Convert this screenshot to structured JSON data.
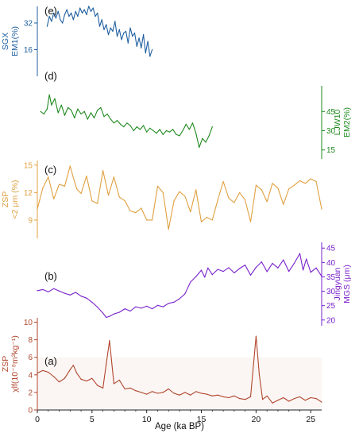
{
  "chart_data": {
    "type": "line",
    "x_axis": {
      "label": "Age (ka BP)",
      "range": [
        0,
        26
      ],
      "ticks": [
        "0",
        "5",
        "10",
        "15",
        "20",
        "25"
      ]
    },
    "panels": [
      {
        "id": "e",
        "tag": "(e)",
        "side": "left",
        "color": "#1f5fa0",
        "ylabel": [
          "SGX",
          "EM1(%)"
        ],
        "ylim": [
          0,
          42
        ],
        "y_ticks": [
          "16",
          "32"
        ],
        "y_tick_values": [
          16,
          32
        ],
        "series": {
          "name": "SGX EM1",
          "x": [
            0.9,
            1.1,
            1.3,
            1.5,
            1.7,
            1.9,
            2.1,
            2.3,
            2.5,
            2.7,
            2.9,
            3.1,
            3.3,
            3.5,
            3.7,
            3.9,
            4.1,
            4.3,
            4.5,
            4.7,
            4.9,
            5.1,
            5.3,
            5.5,
            5.7,
            5.9,
            6.1,
            6.3,
            6.5,
            6.7,
            6.9,
            7.1,
            7.3,
            7.5,
            7.7,
            7.9,
            8.1,
            8.3,
            8.5,
            8.7,
            8.9,
            9.1,
            9.3,
            9.5,
            9.7,
            9.9,
            10.1,
            10.3,
            10.5
          ],
          "y": [
            30,
            36,
            33,
            38,
            35,
            39,
            34,
            32,
            37,
            40,
            36,
            38,
            34,
            39,
            36,
            41,
            38,
            40,
            37,
            42,
            39,
            41,
            36,
            38,
            30,
            34,
            28,
            31,
            25,
            29,
            27,
            33,
            24,
            28,
            22,
            26,
            27,
            20,
            29,
            24,
            26,
            18,
            23,
            17,
            25,
            14,
            21,
            12,
            16
          ]
        }
      },
      {
        "id": "d",
        "tag": "(d)",
        "side": "right",
        "color": "#1f8a1f",
        "ylabel": [
          "LJW10",
          "EM2(%)"
        ],
        "ylim": [
          8,
          65
        ],
        "y_ticks": [
          "15",
          "30",
          "45"
        ],
        "y_tick_values": [
          15,
          30,
          45
        ],
        "series": {
          "name": "LJW10 EM2",
          "x": [
            0.3,
            0.6,
            0.9,
            1.1,
            1.3,
            1.6,
            1.9,
            2.2,
            2.5,
            2.8,
            3.1,
            3.4,
            3.7,
            4.0,
            4.3,
            4.6,
            4.9,
            5.2,
            5.5,
            5.8,
            6.1,
            6.4,
            6.7,
            7.0,
            7.3,
            7.6,
            7.9,
            8.2,
            8.5,
            8.8,
            9.1,
            9.4,
            9.7,
            10.0,
            10.3,
            10.6,
            10.9,
            11.2,
            11.5,
            11.8,
            12.1,
            12.4,
            12.7,
            13.0,
            13.3,
            13.6,
            13.9,
            14.2,
            14.5,
            14.8,
            15.1,
            15.4,
            15.7,
            16.0
          ],
          "y": [
            45,
            43,
            47,
            58,
            50,
            55,
            44,
            50,
            42,
            48,
            46,
            40,
            47,
            43,
            45,
            39,
            44,
            40,
            46,
            48,
            41,
            43,
            39,
            36,
            38,
            35,
            33,
            36,
            34,
            30,
            33,
            31,
            34,
            29,
            32,
            30,
            28,
            31,
            27,
            30,
            29,
            31,
            27,
            26,
            30,
            35,
            31,
            36,
            28,
            17,
            24,
            21,
            26,
            33
          ]
        }
      },
      {
        "id": "c",
        "tag": "(c)",
        "side": "left",
        "color": "#e0a040",
        "ylabel": [
          "ZSP",
          "<2 μm  (%)"
        ],
        "ylim": [
          7,
          15.5
        ],
        "y_ticks": [
          "9",
          "12",
          "15"
        ],
        "y_tick_values": [
          9,
          12,
          15
        ],
        "series": {
          "name": "ZSP <2 μm",
          "x": [
            0,
            0.5,
            1.0,
            1.5,
            2.0,
            2.5,
            3.0,
            3.3,
            3.6,
            4.0,
            4.5,
            5.0,
            5.5,
            6.0,
            6.5,
            7.0,
            7.5,
            8.0,
            8.5,
            9.0,
            9.5,
            10.0,
            10.5,
            11.0,
            11.5,
            12.0,
            12.5,
            13.0,
            13.5,
            14.0,
            14.5,
            15.0,
            15.5,
            16.0,
            16.5,
            17.0,
            17.5,
            18.0,
            18.5,
            19.0,
            19.5,
            20.0,
            20.5,
            21.0,
            21.5,
            22.0,
            22.5,
            23.0,
            23.5,
            24.0,
            24.5,
            25.0,
            25.5,
            26.0
          ],
          "y": [
            10.2,
            12.5,
            13.7,
            11.3,
            12.9,
            12.7,
            14.9,
            13.6,
            12.4,
            11.9,
            13.8,
            11.1,
            10.8,
            14.4,
            11.7,
            13.7,
            11.5,
            11.1,
            10.0,
            9.8,
            10.3,
            9.0,
            9.0,
            12.7,
            12.0,
            8.0,
            11.1,
            12.1,
            11.6,
            9.9,
            12.3,
            8.8,
            9.3,
            9.0,
            11.2,
            13.2,
            11.4,
            10.9,
            12.0,
            11.2,
            8.8,
            12.8,
            12.3,
            11.0,
            13.0,
            12.5,
            10.7,
            12.4,
            12.8,
            13.3,
            13.0,
            13.5,
            13.2,
            10.2
          ]
        }
      },
      {
        "id": "b",
        "tag": "(b)",
        "side": "right",
        "color": "#7a22cc",
        "ylabel": [
          "Jingyuan",
          "MGS (μm)"
        ],
        "ylim": [
          18,
          47
        ],
        "y_ticks": [
          "20",
          "25",
          "30",
          "35",
          "40",
          "45"
        ],
        "y_tick_values": [
          20,
          25,
          30,
          35,
          40,
          45
        ],
        "series": {
          "name": "Jingyuan MGS",
          "x": [
            0,
            0.5,
            1.0,
            1.5,
            2.0,
            2.5,
            3.0,
            3.5,
            4.0,
            4.5,
            5.0,
            5.5,
            6.0,
            6.3,
            6.6,
            7.0,
            7.5,
            8.0,
            8.5,
            9.0,
            9.5,
            10.0,
            10.5,
            11.0,
            11.5,
            12.0,
            12.5,
            13.0,
            13.5,
            14.0,
            14.5,
            15.0,
            15.3,
            15.6,
            16.0,
            16.5,
            17.0,
            17.5,
            18.0,
            18.5,
            19.0,
            19.5,
            20.0,
            20.5,
            21.0,
            21.5,
            22.0,
            22.5,
            23.0,
            23.5,
            24.0,
            24.3,
            24.6,
            25.0,
            25.5,
            26.0
          ],
          "y": [
            30.2,
            30.6,
            29.8,
            30.9,
            30.1,
            29.3,
            28.7,
            29.6,
            28.3,
            27.6,
            26.2,
            24.5,
            22.4,
            20.9,
            21.3,
            22.1,
            22.7,
            23.9,
            23.1,
            24.6,
            24.1,
            24.8,
            23.9,
            25.1,
            24.6,
            25.8,
            26.2,
            27.4,
            29.1,
            33.2,
            35.1,
            37.3,
            34.9,
            38.1,
            35.8,
            37.6,
            36.9,
            38.2,
            36.4,
            37.9,
            39.1,
            35.6,
            38.3,
            40.2,
            36.8,
            39.7,
            38.1,
            40.9,
            36.9,
            39.8,
            43.1,
            37.4,
            41.2,
            36.6,
            38.1,
            35.2
          ]
        }
      },
      {
        "id": "a",
        "tag": "(a)",
        "side": "left",
        "color": "#b0452c",
        "ylabel": [
          "ZSP",
          "χlf(10⁻⁸m³kg⁻¹)"
        ],
        "ylim": [
          0,
          10.5
        ],
        "y_ticks": [
          "0",
          "2",
          "4",
          "6",
          "8",
          "10"
        ],
        "y_tick_values": [
          0,
          2,
          4,
          6,
          8,
          10
        ],
        "series": {
          "name": "ZSP χlf",
          "x": [
            0,
            0.5,
            1.0,
            1.5,
            2.0,
            2.5,
            3.0,
            3.3,
            3.6,
            4.0,
            4.5,
            5.0,
            5.5,
            6.0,
            6.3,
            6.6,
            7.0,
            7.5,
            8.0,
            8.5,
            9.0,
            9.5,
            10.0,
            10.5,
            11.0,
            11.5,
            12.0,
            12.5,
            13.0,
            13.5,
            14.0,
            14.5,
            15.0,
            15.5,
            16.0,
            16.5,
            17.0,
            17.5,
            18.0,
            18.5,
            19.0,
            19.5,
            20.0,
            20.3,
            20.6,
            21.0,
            21.5,
            22.0,
            22.5,
            23.0,
            23.5,
            24.0,
            24.5,
            25.0,
            25.5,
            26.0
          ],
          "y": [
            4.2,
            4.5,
            4.3,
            3.8,
            3.2,
            3.6,
            4.6,
            5.1,
            4.2,
            3.5,
            3.3,
            3.6,
            2.8,
            2.5,
            5.2,
            7.9,
            3.0,
            3.4,
            2.4,
            2.5,
            2.2,
            2.0,
            1.8,
            2.1,
            1.9,
            2.0,
            2.4,
            1.9,
            1.7,
            2.0,
            1.7,
            2.1,
            1.9,
            1.8,
            1.6,
            1.7,
            1.5,
            1.4,
            1.6,
            1.3,
            1.2,
            1.5,
            8.4,
            4.0,
            1.2,
            1.6,
            0.8,
            1.1,
            1.4,
            1.0,
            1.3,
            1.5,
            1.1,
            1.4,
            1.3,
            0.9
          ]
        }
      }
    ]
  }
}
